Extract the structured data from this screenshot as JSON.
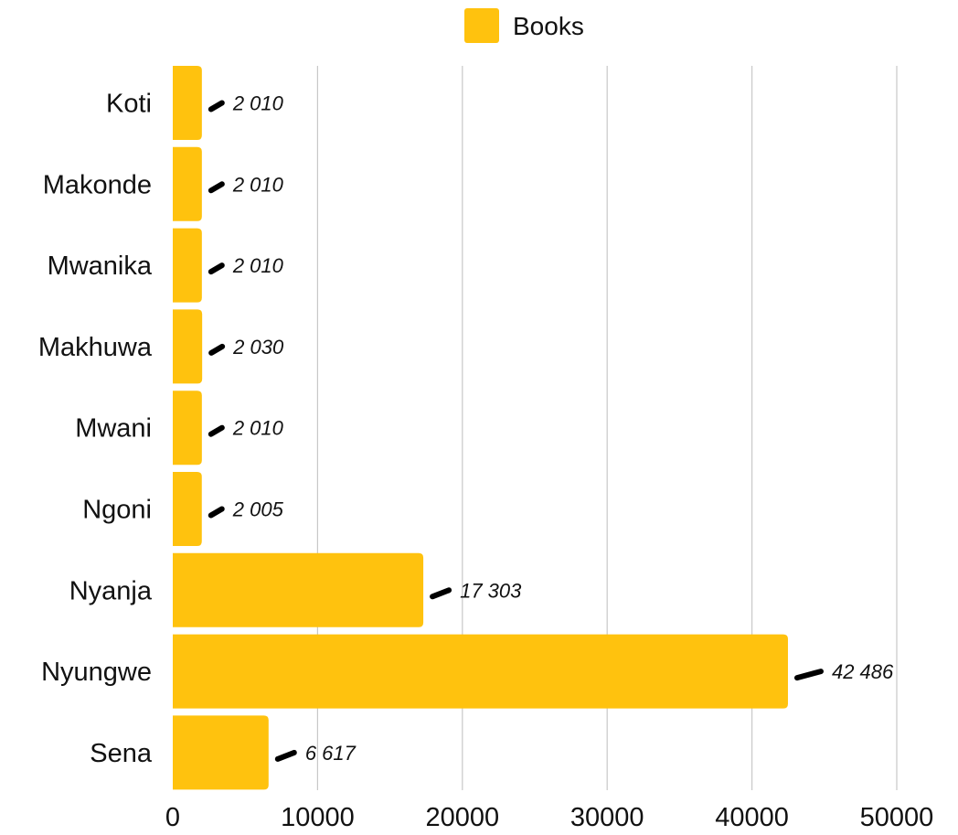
{
  "chart_data": {
    "type": "bar",
    "orientation": "horizontal",
    "title": "",
    "xlabel": "",
    "ylabel": "",
    "categories": [
      "Koti",
      "Makonde",
      "Mwanika",
      "Makhuwa",
      "Mwani",
      "Ngoni",
      "Nyanja",
      "Nyungwe",
      "Sena"
    ],
    "series": [
      {
        "name": "Books",
        "color": "#FFC20E",
        "values": [
          2010,
          2010,
          2010,
          2030,
          2010,
          2005,
          17303,
          42486,
          6617
        ],
        "value_labels": [
          "2 010",
          "2 010",
          "2 010",
          "2 030",
          "2 010",
          "2 005",
          "17 303",
          "42 486",
          "6 617"
        ]
      }
    ],
    "xlim": [
      0,
      50000
    ],
    "xticks": [
      0,
      10000,
      20000,
      30000,
      40000,
      50000
    ],
    "xtick_labels": [
      "0",
      "10000",
      "20000",
      "30000",
      "40000",
      "50000"
    ],
    "grid": "vertical",
    "legend": {
      "position": "top-center",
      "entries": [
        "Books"
      ]
    },
    "label_marker_icon": "ink-stroke-icon"
  }
}
